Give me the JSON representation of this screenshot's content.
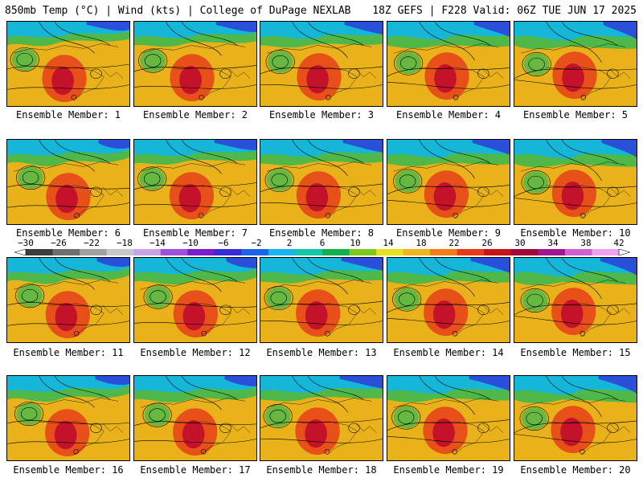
{
  "header": {
    "left_title": "850mb Temp (°C) | Wind (kts) | College of DuPage NEXLAB",
    "right_title": "18Z GEFS | F228 Valid: 06Z TUE JUN 17 2025"
  },
  "members": [
    "Ensemble Member: 1",
    "Ensemble Member: 2",
    "Ensemble Member: 3",
    "Ensemble Member: 4",
    "Ensemble Member: 5",
    "Ensemble Member: 6",
    "Ensemble Member: 7",
    "Ensemble Member: 8",
    "Ensemble Member: 9",
    "Ensemble Member: 10",
    "Ensemble Member: 11",
    "Ensemble Member: 12",
    "Ensemble Member: 13",
    "Ensemble Member: 14",
    "Ensemble Member: 15",
    "Ensemble Member: 16",
    "Ensemble Member: 17",
    "Ensemble Member: 18",
    "Ensemble Member: 19",
    "Ensemble Member: 20"
  ],
  "colorbar": {
    "ticks": [
      "−30",
      "−26",
      "−22",
      "−18",
      "−14",
      "−10",
      "−6",
      "−2",
      "2",
      "6",
      "10",
      "14",
      "18",
      "22",
      "26",
      "30",
      "34",
      "38",
      "42"
    ],
    "colors": [
      "#3c3c3c",
      "#6e6e6e",
      "#a0a0a0",
      "#c8c8c8",
      "#c9a3e6",
      "#a050d8",
      "#7a1cc8",
      "#3a2ad8",
      "#1c64e8",
      "#18b4f0",
      "#10c8a8",
      "#14b050",
      "#7ec81e",
      "#e8e01c",
      "#f0b41e",
      "#f07c1a",
      "#e83a1a",
      "#c81414",
      "#a00a3a",
      "#a01890",
      "#d060d0",
      "#f0a0f0"
    ]
  },
  "map_colors": {
    "cold": "#2a4fd8",
    "cool": "#16b6d8",
    "mild": "#4fb848",
    "warm": "#e9b21a",
    "hot": "#e8501a",
    "hottest": "#c4122a",
    "contour": "#000000"
  }
}
